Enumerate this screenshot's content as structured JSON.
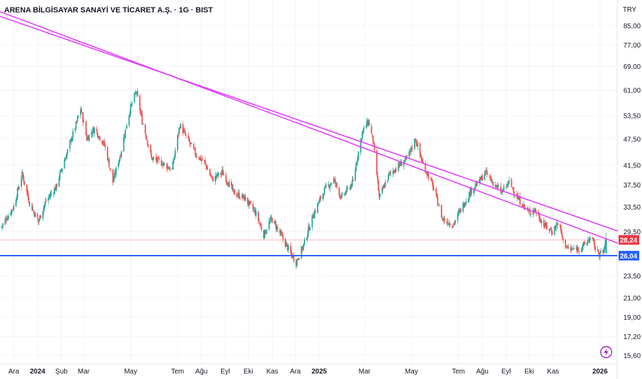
{
  "header": {
    "symbol_title": "ARENA BİLGİSAYAR SANAYİ VE TİCARET A.Ş. · 1G · BIST",
    "currency": "TRY"
  },
  "chart_data": {
    "type": "candlestick",
    "scale": "log",
    "grid": true,
    "colors": {
      "up": "#26a69a",
      "down": "#ef5350",
      "trendline": "#e040fb",
      "support": "#2962ff",
      "price_badge": "#f23645",
      "support_badge": "#2962ff"
    },
    "y_ticks": [
      "85,00",
      "77,00",
      "69,00",
      "61,00",
      "53,50",
      "47,50",
      "41,50",
      "37,50",
      "33,50",
      "29,50",
      "23,50",
      "21,00",
      "19,00",
      "17,20",
      "15,60"
    ],
    "y_tick_values": [
      85,
      77,
      69,
      61,
      53.5,
      47.5,
      41.5,
      37.5,
      33.5,
      29.5,
      23.5,
      21,
      19,
      17.2,
      15.6
    ],
    "ylim": [
      15.2,
      90
    ],
    "x_ticks": [
      "Ara",
      "2024",
      "Şub",
      "Mar",
      "May",
      "Tem",
      "Ağu",
      "Eyl",
      "Eki",
      "Kas",
      "Ara",
      "2025",
      "Mar",
      "May",
      "Tem",
      "Ağu",
      "Eyl",
      "Eki",
      "Kas",
      "2026"
    ],
    "x_tick_dates": [
      "2023-12-01",
      "2024-01-01",
      "2024-02-01",
      "2024-03-01",
      "2024-05-01",
      "2024-07-01",
      "2024-08-01",
      "2024-09-01",
      "2024-10-01",
      "2024-11-01",
      "2024-12-01",
      "2025-01-01",
      "2025-03-01",
      "2025-05-01",
      "2025-07-01",
      "2025-08-01",
      "2025-09-01",
      "2025-10-01",
      "2025-11-01",
      "2026-01-01"
    ],
    "bold_ticks": [
      "2024",
      "2025",
      "2026"
    ],
    "close_path": [
      [
        "2023-11-15",
        30.2
      ],
      [
        "2023-12-01",
        33.5
      ],
      [
        "2023-12-12",
        39.5
      ],
      [
        "2023-12-22",
        34
      ],
      [
        "2024-01-02",
        31
      ],
      [
        "2024-01-12",
        34.5
      ],
      [
        "2024-01-25",
        37
      ],
      [
        "2024-02-08",
        44
      ],
      [
        "2024-02-20",
        51
      ],
      [
        "2024-02-26",
        55.5
      ],
      [
        "2024-03-05",
        47.5
      ],
      [
        "2024-03-15",
        50
      ],
      [
        "2024-03-28",
        46
      ],
      [
        "2024-04-08",
        38
      ],
      [
        "2024-04-18",
        44
      ],
      [
        "2024-04-30",
        55
      ],
      [
        "2024-05-08",
        60.5
      ],
      [
        "2024-05-16",
        52
      ],
      [
        "2024-05-28",
        43
      ],
      [
        "2024-06-10",
        42
      ],
      [
        "2024-06-24",
        40.5
      ],
      [
        "2024-07-04",
        51
      ],
      [
        "2024-07-12",
        48
      ],
      [
        "2024-07-24",
        44
      ],
      [
        "2024-08-05",
        42
      ],
      [
        "2024-08-15",
        38.5
      ],
      [
        "2024-08-28",
        40
      ],
      [
        "2024-09-12",
        36
      ],
      [
        "2024-09-26",
        35
      ],
      [
        "2024-10-10",
        32.5
      ],
      [
        "2024-10-21",
        29
      ],
      [
        "2024-10-31",
        31.5
      ],
      [
        "2024-11-12",
        29
      ],
      [
        "2024-11-24",
        26.5
      ],
      [
        "2024-12-02",
        25.2
      ],
      [
        "2024-12-12",
        27.5
      ],
      [
        "2024-12-24",
        32
      ],
      [
        "2025-01-08",
        36.5
      ],
      [
        "2025-01-20",
        38.5
      ],
      [
        "2025-01-30",
        35
      ],
      [
        "2025-02-14",
        38
      ],
      [
        "2025-02-26",
        49
      ],
      [
        "2025-03-06",
        52
      ],
      [
        "2025-03-12",
        47
      ],
      [
        "2025-03-20",
        35
      ],
      [
        "2025-04-02",
        39.5
      ],
      [
        "2025-04-12",
        41
      ],
      [
        "2025-04-26",
        43
      ],
      [
        "2025-05-06",
        47.5
      ],
      [
        "2025-05-15",
        42
      ],
      [
        "2025-05-28",
        37.5
      ],
      [
        "2025-06-10",
        31.5
      ],
      [
        "2025-06-24",
        30.5
      ],
      [
        "2025-07-04",
        33
      ],
      [
        "2025-07-18",
        36.5
      ],
      [
        "2025-07-30",
        38.5
      ],
      [
        "2025-08-05",
        40
      ],
      [
        "2025-08-14",
        38
      ],
      [
        "2025-08-26",
        36
      ],
      [
        "2025-09-05",
        38
      ],
      [
        "2025-09-16",
        35
      ],
      [
        "2025-09-30",
        32.5
      ],
      [
        "2025-10-08",
        33
      ],
      [
        "2025-10-20",
        30.5
      ],
      [
        "2025-10-31",
        29.5
      ],
      [
        "2025-11-08",
        31
      ],
      [
        "2025-11-14",
        28
      ],
      [
        "2025-11-22",
        26.8
      ],
      [
        "2025-12-03",
        27
      ],
      [
        "2025-12-12",
        27.5
      ],
      [
        "2025-12-20",
        28.7
      ],
      [
        "2025-12-28",
        26.5
      ],
      [
        "2026-01-05",
        26.3
      ],
      [
        "2026-01-09",
        28.24
      ]
    ],
    "trendlines": [
      {
        "from": [
          "2023-09-20",
          96
        ],
        "to": [
          "2026-01-28",
          29.4
        ]
      },
      {
        "from": [
          "2023-10-10",
          96
        ],
        "to": [
          "2026-01-28",
          27.6
        ]
      }
    ],
    "support_level": 26.04,
    "price_lines": [
      28.24
    ],
    "badges": [
      {
        "label": "28,24",
        "value": 28.24,
        "kind": "price"
      },
      {
        "label": "26,04",
        "value": 26.04,
        "kind": "support"
      }
    ]
  }
}
